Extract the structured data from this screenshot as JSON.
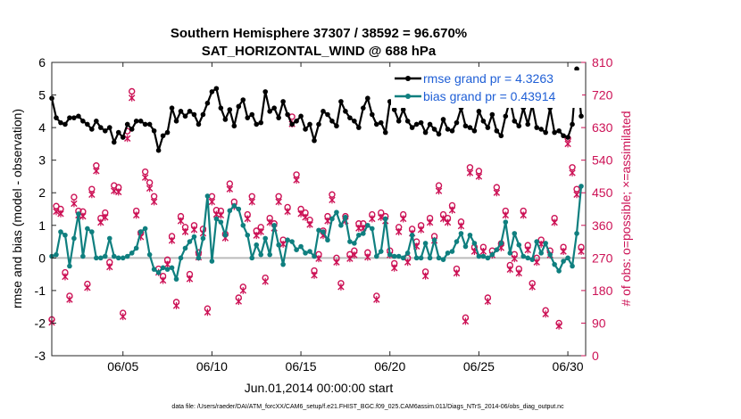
{
  "chart_data": {
    "type": "line",
    "title": "Southern Hemisphere 37307 / 38592 = 96.670%",
    "subtitle": "SAT_HORIZONTAL_WIND @ 688 hPa",
    "xlabel": "Jun.01,2014 00:00:00 start",
    "ylabel_left": "rmse and bias (model - observation)",
    "ylabel_right": "# of obs: o=possible; ×=assimilated",
    "footnote": "data file: /Users/raeder/DAI/ATM_forcXX/CAM6_setup/f.e21.FHIST_BGC.f09_025.CAM6assim.011/Diags_NTrS_2014-06/obs_diag_output.nc",
    "xlim": [
      1,
      31
    ],
    "ylim_left": [
      -3,
      6
    ],
    "ylim_right": [
      0,
      810
    ],
    "x_ticks": [
      5,
      10,
      15,
      20,
      25,
      30
    ],
    "x_tick_labels": [
      "06/05",
      "06/10",
      "06/15",
      "06/20",
      "06/25",
      "06/30"
    ],
    "y_ticks_left": [
      -3,
      -2,
      -1,
      0,
      1,
      2,
      3,
      4,
      5,
      6
    ],
    "y_tick_labels_left": [
      "-3",
      "-2",
      "-1",
      "0",
      "1",
      "2",
      "3",
      "4",
      "5",
      "6"
    ],
    "y_ticks_right": [
      0,
      90,
      180,
      270,
      360,
      450,
      540,
      630,
      720,
      810
    ],
    "y_tick_labels_right": [
      "0",
      "90",
      "180",
      "270",
      "360",
      "450",
      "540",
      "630",
      "720",
      "810"
    ],
    "legend_position": "top-right",
    "colors": {
      "rmse": "#000000",
      "bias": "#0f7f7f",
      "obs": "#cc1155",
      "legend_text": "#1f5fd6",
      "zero_line": "#bbbbbb",
      "axes": "#262626"
    },
    "series": [
      {
        "name": "rmse grand pr = 4.3263",
        "key": "rmse",
        "x": [
          1.0,
          1.25,
          1.5,
          1.75,
          2.0,
          2.25,
          2.5,
          2.75,
          3.0,
          3.25,
          3.5,
          3.75,
          4.0,
          4.25,
          4.5,
          4.75,
          5.0,
          5.25,
          5.5,
          5.75,
          6.0,
          6.25,
          6.5,
          6.75,
          7.0,
          7.25,
          7.5,
          7.75,
          8.0,
          8.25,
          8.5,
          8.75,
          9.0,
          9.25,
          9.5,
          9.75,
          10.0,
          10.25,
          10.5,
          10.75,
          11.0,
          11.25,
          11.5,
          11.75,
          12.0,
          12.25,
          12.5,
          12.75,
          13.0,
          13.25,
          13.5,
          13.75,
          14.0,
          14.25,
          14.5,
          14.75,
          15.0,
          15.25,
          15.5,
          15.75,
          16.0,
          16.25,
          16.5,
          16.75,
          17.0,
          17.25,
          17.5,
          17.75,
          18.0,
          18.25,
          18.5,
          18.75,
          19.0,
          19.25,
          19.5,
          19.75,
          20.0,
          20.25,
          20.5,
          20.75,
          21.0,
          21.25,
          21.5,
          21.75,
          22.0,
          22.25,
          22.5,
          22.75,
          23.0,
          23.25,
          23.5,
          23.75,
          24.0,
          24.25,
          24.5,
          24.75,
          25.0,
          25.25,
          25.5,
          25.75,
          26.0,
          26.25,
          26.5,
          26.75,
          27.0,
          27.25,
          27.5,
          27.75,
          28.0,
          28.25,
          28.5,
          28.75,
          29.0,
          29.25,
          29.5,
          29.75,
          30.0,
          30.25,
          30.5,
          30.75
        ],
        "values": [
          4.9,
          4.3,
          4.15,
          4.1,
          4.3,
          4.3,
          4.35,
          4.2,
          4.1,
          3.95,
          4.2,
          4.0,
          3.9,
          4.0,
          3.55,
          3.85,
          3.7,
          4.1,
          3.95,
          4.2,
          4.2,
          4.1,
          4.1,
          3.9,
          3.3,
          3.75,
          3.85,
          4.6,
          4.2,
          4.5,
          4.35,
          4.5,
          4.4,
          4.1,
          4.4,
          4.75,
          5.1,
          5.2,
          4.6,
          4.25,
          4.55,
          4.05,
          4.65,
          4.85,
          4.3,
          4.4,
          4.1,
          4.15,
          5.1,
          4.5,
          4.6,
          4.3,
          4.8,
          4.4,
          4.1,
          4.2,
          4.35,
          3.95,
          4.1,
          3.6,
          4.1,
          4.5,
          4.4,
          4.2,
          4.05,
          4.8,
          4.5,
          4.3,
          4.2,
          4.0,
          4.6,
          4.9,
          4.4,
          4.1,
          4.15,
          3.85,
          4.8,
          4.55,
          4.2,
          4.55,
          4.2,
          4.0,
          4.1,
          4.15,
          3.85,
          4.1,
          3.95,
          3.8,
          4.25,
          3.95,
          3.9,
          4.15,
          4.6,
          4.05,
          4.0,
          3.9,
          4.5,
          4.2,
          4.0,
          4.4,
          3.9,
          3.75,
          4.35,
          4.85,
          4.2,
          4.05,
          4.6,
          4.1,
          4.7,
          4.0,
          3.95,
          3.85,
          4.6,
          3.85,
          3.9,
          3.75,
          3.7,
          4.1,
          5.8,
          4.35
        ]
      },
      {
        "name": "bias grand pr = 0.43914",
        "key": "bias",
        "x": [
          1.0,
          1.25,
          1.5,
          1.75,
          2.0,
          2.25,
          2.5,
          2.75,
          3.0,
          3.25,
          3.5,
          3.75,
          4.0,
          4.25,
          4.5,
          4.75,
          5.0,
          5.25,
          5.5,
          5.75,
          6.0,
          6.25,
          6.5,
          6.75,
          7.0,
          7.25,
          7.5,
          7.75,
          8.0,
          8.25,
          8.5,
          8.75,
          9.0,
          9.25,
          9.5,
          9.75,
          10.0,
          10.25,
          10.5,
          10.75,
          11.0,
          11.25,
          11.5,
          11.75,
          12.0,
          12.25,
          12.5,
          12.75,
          13.0,
          13.25,
          13.5,
          13.75,
          14.0,
          14.25,
          14.5,
          14.75,
          15.0,
          15.25,
          15.5,
          15.75,
          16.0,
          16.25,
          16.5,
          16.75,
          17.0,
          17.25,
          17.5,
          17.75,
          18.0,
          18.25,
          18.5,
          18.75,
          19.0,
          19.25,
          19.5,
          19.75,
          20.0,
          20.25,
          20.5,
          20.75,
          21.0,
          21.25,
          21.5,
          21.75,
          22.0,
          22.25,
          22.5,
          22.75,
          23.0,
          23.25,
          23.5,
          23.75,
          24.0,
          24.25,
          24.5,
          24.75,
          25.0,
          25.25,
          25.5,
          25.75,
          26.0,
          26.25,
          26.5,
          26.75,
          27.0,
          27.25,
          27.5,
          27.75,
          28.0,
          28.25,
          28.5,
          28.75,
          29.0,
          29.25,
          29.5,
          29.75,
          30.0,
          30.25,
          30.5,
          30.75
        ],
        "values": [
          0.05,
          0.1,
          0.8,
          0.7,
          -0.25,
          0.6,
          1.35,
          0.05,
          0.9,
          0.8,
          0.0,
          0.0,
          0.05,
          0.6,
          0.05,
          0.0,
          0.0,
          0.05,
          0.15,
          0.3,
          0.8,
          0.9,
          0.1,
          -0.35,
          -0.45,
          -0.3,
          -0.35,
          -0.3,
          -0.65,
          0.0,
          0.3,
          0.5,
          0.65,
          0.0,
          0.6,
          1.9,
          -0.1,
          1.2,
          1.1,
          0.7,
          1.45,
          1.6,
          1.5,
          1.0,
          0.7,
          0.0,
          0.4,
          0.1,
          0.6,
          0.1,
          1.0,
          0.4,
          -0.2,
          0.55,
          0.5,
          0.25,
          0.35,
          0.15,
          0.2,
          0.05,
          0.85,
          0.8,
          0.55,
          1.2,
          1.4,
          1.0,
          1.25,
          0.5,
          0.45,
          0.7,
          0.75,
          1.0,
          0.9,
          0.05,
          0.2,
          1.2,
          0.1,
          0.05,
          0.05,
          0.0,
          0.15,
          0.7,
          0.0,
          0.0,
          0.45,
          0.0,
          0.55,
          0.0,
          -0.05,
          0.15,
          0.2,
          0.5,
          0.75,
          0.35,
          0.7,
          0.45,
          0.05,
          0.05,
          0.0,
          0.1,
          0.25,
          0.45,
          1.1,
          0.15,
          0.75,
          0.4,
          0.05,
          0.0,
          -0.05,
          0.5,
          0.15,
          0.45,
          0.1,
          -0.2,
          -0.4,
          -0.1,
          0.0,
          -0.25,
          0.75,
          2.2
        ]
      },
      {
        "name": "# of obs possible",
        "key": "obs_possible",
        "x": [
          1.0,
          1.25,
          1.5,
          1.75,
          2.0,
          2.25,
          2.5,
          2.75,
          3.0,
          3.25,
          3.5,
          3.75,
          4.0,
          4.25,
          4.5,
          4.75,
          5.0,
          5.25,
          5.5,
          5.75,
          6.0,
          6.25,
          6.5,
          6.75,
          7.0,
          7.25,
          7.5,
          7.75,
          8.0,
          8.25,
          8.5,
          8.75,
          9.0,
          9.25,
          9.5,
          9.75,
          10.0,
          10.25,
          10.5,
          10.75,
          11.0,
          11.25,
          11.5,
          11.75,
          12.0,
          12.25,
          12.5,
          12.75,
          13.0,
          13.25,
          13.5,
          13.75,
          14.0,
          14.25,
          14.5,
          14.75,
          15.0,
          15.25,
          15.5,
          15.75,
          16.0,
          16.25,
          16.5,
          16.75,
          17.0,
          17.25,
          17.5,
          17.75,
          18.0,
          18.25,
          18.5,
          18.75,
          19.0,
          19.25,
          19.5,
          19.75,
          20.0,
          20.25,
          20.5,
          20.75,
          21.0,
          21.25,
          21.5,
          21.75,
          22.0,
          22.25,
          22.5,
          22.75,
          23.0,
          23.25,
          23.5,
          23.75,
          24.0,
          24.25,
          24.5,
          24.75,
          25.0,
          25.25,
          25.5,
          25.75,
          26.0,
          26.25,
          26.5,
          26.75,
          27.0,
          27.25,
          27.5,
          27.75,
          28.0,
          28.25,
          28.5,
          28.75,
          29.0,
          29.25,
          29.5,
          29.75,
          30.0,
          30.25,
          30.5,
          30.75
        ],
        "values": [
          100,
          413,
          405,
          230,
          165,
          438,
          400,
          398,
          198,
          460,
          525,
          380,
          395,
          258,
          470,
          465,
          118,
          620,
          730,
          400,
          340,
          508,
          478,
          440,
          240,
          220,
          265,
          330,
          148,
          385,
          355,
          225,
          360,
          285,
          350,
          130,
          440,
          402,
          400,
          336,
          475,
          425,
          160,
          190,
          390,
          440,
          345,
          355,
          215,
          380,
          365,
          440,
          320,
          410,
          660,
          500,
          405,
          395,
          375,
          235,
          280,
          345,
          385,
          445,
          270,
          200,
          385,
          280,
          290,
          365,
          365,
          285,
          390,
          165,
          395,
          385,
          290,
          255,
          355,
          390,
          270,
          350,
          315,
          360,
          232,
          380,
          330,
          470,
          390,
          380,
          415,
          240,
          370,
          105,
          520,
          300,
          510,
          300,
          160,
          290,
          465,
          310,
          400,
          250,
          280,
          240,
          400,
          305,
          200,
          270,
          320,
          125,
          290,
          380,
          90,
          300,
          600,
          520,
          460,
          300
        ]
      },
      {
        "name": "# of obs assimilated",
        "key": "obs_assimilated",
        "x": [
          1.0,
          1.25,
          1.5,
          1.75,
          2.0,
          2.25,
          2.5,
          2.75,
          3.0,
          3.25,
          3.5,
          3.75,
          4.0,
          4.25,
          4.5,
          4.75,
          5.0,
          5.25,
          5.5,
          5.75,
          6.0,
          6.25,
          6.5,
          6.75,
          7.0,
          7.25,
          7.5,
          7.75,
          8.0,
          8.25,
          8.5,
          8.75,
          9.0,
          9.25,
          9.5,
          9.75,
          10.0,
          10.25,
          10.5,
          10.75,
          11.0,
          11.25,
          11.5,
          11.75,
          12.0,
          12.25,
          12.5,
          12.75,
          13.0,
          13.25,
          13.5,
          13.75,
          14.0,
          14.25,
          14.5,
          14.75,
          15.0,
          15.25,
          15.5,
          15.75,
          16.0,
          16.25,
          16.5,
          16.75,
          17.0,
          17.25,
          17.5,
          17.75,
          18.0,
          18.25,
          18.5,
          18.75,
          19.0,
          19.25,
          19.5,
          19.75,
          20.0,
          20.25,
          20.5,
          20.75,
          21.0,
          21.25,
          21.5,
          21.75,
          22.0,
          22.25,
          22.5,
          22.75,
          23.0,
          23.25,
          23.5,
          23.75,
          24.0,
          24.25,
          24.5,
          24.75,
          25.0,
          25.25,
          25.5,
          25.75,
          26.0,
          26.25,
          26.5,
          26.75,
          27.0,
          27.25,
          27.5,
          27.75,
          28.0,
          28.25,
          28.5,
          28.75,
          29.0,
          29.25,
          29.5,
          29.75,
          30.0,
          30.25,
          30.5,
          30.75
        ],
        "values": [
          92,
          398,
          392,
          218,
          155,
          420,
          388,
          385,
          188,
          445,
          510,
          368,
          382,
          245,
          455,
          452,
          108,
          600,
          712,
          388,
          328,
          492,
          462,
          425,
          230,
          208,
          252,
          318,
          138,
          372,
          342,
          212,
          348,
          272,
          338,
          120,
          425,
          390,
          388,
          325,
          460,
          412,
          150,
          180,
          378,
          425,
          332,
          342,
          205,
          368,
          352,
          425,
          308,
          398,
          640,
          485,
          392,
          382,
          362,
          222,
          268,
          332,
          372,
          430,
          258,
          190,
          372,
          268,
          278,
          352,
          352,
          272,
          378,
          155,
          382,
          372,
          278,
          242,
          342,
          378,
          258,
          338,
          302,
          348,
          220,
          368,
          318,
          455,
          378,
          368,
          402,
          228,
          358,
          95,
          505,
          288,
          495,
          288,
          150,
          278,
          450,
          298,
          388,
          238,
          268,
          228,
          388,
          292,
          190,
          258,
          308,
          115,
          278,
          368,
          82,
          288,
          585,
          505,
          445,
          288
        ]
      }
    ]
  }
}
